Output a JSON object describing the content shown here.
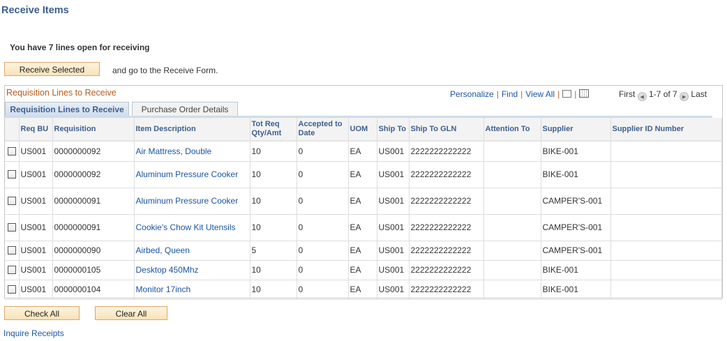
{
  "title": "Receive Items",
  "info": "You have 7 lines open for receiving",
  "receive_button": "Receive Selected",
  "receive_note": "and go to the Receive Form.",
  "grid": {
    "title": "Requisition Lines to Receive",
    "nav": {
      "personalize": "Personalize",
      "find": "Find",
      "view_all": "View All",
      "sep": "|"
    },
    "pager": {
      "first": "First",
      "range": "1-7 of 7",
      "last": "Last"
    },
    "tabs": [
      "Requisition Lines to Receive",
      "Purchase Order Details"
    ],
    "columns": [
      "",
      "Req BU",
      "Requisition",
      "Item Description",
      "Tot Req Qty/Amt",
      "Accepted to Date",
      "UOM",
      "Ship To",
      "Ship To GLN",
      "Attention To",
      "Supplier",
      "Supplier ID Number"
    ],
    "rows": [
      [
        "US001",
        "0000000092",
        "Air Mattress, Double",
        "10",
        "0",
        "EA",
        "US001",
        "2222222222222",
        "",
        "BIKE-001",
        ""
      ],
      [
        "US001",
        "0000000092",
        "Aluminum Pressure Cooker",
        "10",
        "0",
        "EA",
        "US001",
        "2222222222222",
        "",
        "BIKE-001",
        ""
      ],
      [
        "US001",
        "0000000091",
        "Aluminum Pressure Cooker",
        "10",
        "0",
        "EA",
        "US001",
        "2222222222222",
        "",
        "CAMPER'S-001",
        ""
      ],
      [
        "US001",
        "0000000091",
        "Cookie's Chow Kit Utensils",
        "10",
        "0",
        "EA",
        "US001",
        "2222222222222",
        "",
        "CAMPER'S-001",
        ""
      ],
      [
        "US001",
        "0000000090",
        "Airbed, Queen",
        "5",
        "0",
        "EA",
        "US001",
        "2222222222222",
        "",
        "CAMPER'S-001",
        ""
      ],
      [
        "US001",
        "0000000105",
        "Desktop 450Mhz",
        "10",
        "0",
        "EA",
        "US001",
        "2222222222222",
        "",
        "BIKE-001",
        ""
      ],
      [
        "US001",
        "0000000104",
        "Monitor 17inch",
        "10",
        "0",
        "EA",
        "US001",
        "2222222222222",
        "",
        "BIKE-001",
        ""
      ]
    ]
  },
  "check_all": "Check All",
  "clear_all": "Clear All",
  "inquire": "Inquire Receipts"
}
